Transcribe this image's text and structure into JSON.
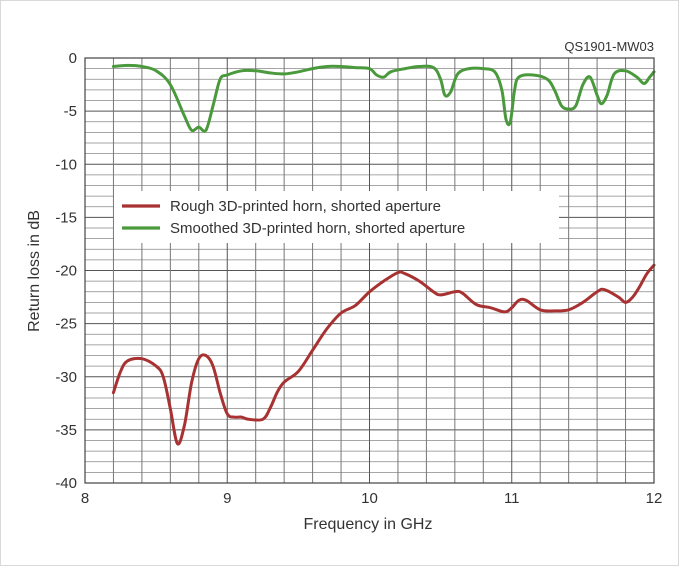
{
  "chart_data": {
    "type": "line",
    "title": "",
    "annotation": "QS1901-MW03",
    "xlabel": "Frequency in GHz",
    "ylabel": "Return loss in dB",
    "xlim": [
      8,
      12
    ],
    "ylim": [
      -40,
      0
    ],
    "x_ticks": [
      "8",
      "9",
      "10",
      "11",
      "12"
    ],
    "y_ticks": [
      "0",
      "-5",
      "-10",
      "-15",
      "-20",
      "-25",
      "-30",
      "-35",
      "-40"
    ],
    "grid": true,
    "legend_position": "upper-left-center",
    "series": [
      {
        "name": "Rough 3D-printed horn, shorted aperture",
        "color": "#a83232",
        "points": [
          [
            8.2,
            -31.5
          ],
          [
            8.25,
            -29.5
          ],
          [
            8.3,
            -28.5
          ],
          [
            8.4,
            -28.3
          ],
          [
            8.5,
            -29.0
          ],
          [
            8.55,
            -30.0
          ],
          [
            8.6,
            -33.0
          ],
          [
            8.65,
            -36.3
          ],
          [
            8.7,
            -34.5
          ],
          [
            8.75,
            -30.5
          ],
          [
            8.8,
            -28.3
          ],
          [
            8.85,
            -28.0
          ],
          [
            8.9,
            -29.0
          ],
          [
            8.95,
            -31.5
          ],
          [
            9.0,
            -33.5
          ],
          [
            9.05,
            -33.8
          ],
          [
            9.1,
            -33.8
          ],
          [
            9.15,
            -34.0
          ],
          [
            9.25,
            -34.0
          ],
          [
            9.3,
            -33.0
          ],
          [
            9.35,
            -31.5
          ],
          [
            9.4,
            -30.5
          ],
          [
            9.5,
            -29.5
          ],
          [
            9.6,
            -27.5
          ],
          [
            9.7,
            -25.5
          ],
          [
            9.8,
            -24.0
          ],
          [
            9.9,
            -23.3
          ],
          [
            10.0,
            -22.0
          ],
          [
            10.1,
            -21.0
          ],
          [
            10.2,
            -20.2
          ],
          [
            10.25,
            -20.3
          ],
          [
            10.35,
            -21.0
          ],
          [
            10.45,
            -22.0
          ],
          [
            10.5,
            -22.3
          ],
          [
            10.6,
            -22.0
          ],
          [
            10.65,
            -22.1
          ],
          [
            10.75,
            -23.2
          ],
          [
            10.85,
            -23.5
          ],
          [
            10.95,
            -23.9
          ],
          [
            11.0,
            -23.5
          ],
          [
            11.05,
            -22.8
          ],
          [
            11.1,
            -22.8
          ],
          [
            11.2,
            -23.7
          ],
          [
            11.3,
            -23.8
          ],
          [
            11.4,
            -23.7
          ],
          [
            11.5,
            -23.0
          ],
          [
            11.6,
            -22.0
          ],
          [
            11.65,
            -21.8
          ],
          [
            11.75,
            -22.5
          ],
          [
            11.8,
            -23.0
          ],
          [
            11.85,
            -22.5
          ],
          [
            11.9,
            -21.5
          ],
          [
            11.95,
            -20.3
          ],
          [
            12.0,
            -19.5
          ]
        ]
      },
      {
        "name": "Smoothed 3D-printed horn, shorted aperture",
        "color": "#4a9a3d",
        "points": [
          [
            8.2,
            -0.8
          ],
          [
            8.3,
            -0.7
          ],
          [
            8.4,
            -0.8
          ],
          [
            8.5,
            -1.2
          ],
          [
            8.6,
            -2.5
          ],
          [
            8.7,
            -5.5
          ],
          [
            8.75,
            -6.8
          ],
          [
            8.8,
            -6.5
          ],
          [
            8.85,
            -6.8
          ],
          [
            8.9,
            -4.5
          ],
          [
            8.95,
            -2.0
          ],
          [
            9.0,
            -1.6
          ],
          [
            9.1,
            -1.2
          ],
          [
            9.2,
            -1.2
          ],
          [
            9.3,
            -1.4
          ],
          [
            9.4,
            -1.5
          ],
          [
            9.5,
            -1.3
          ],
          [
            9.6,
            -1.0
          ],
          [
            9.7,
            -0.8
          ],
          [
            9.8,
            -0.8
          ],
          [
            9.9,
            -0.9
          ],
          [
            10.0,
            -1.0
          ],
          [
            10.05,
            -1.6
          ],
          [
            10.1,
            -1.8
          ],
          [
            10.15,
            -1.3
          ],
          [
            10.25,
            -1.0
          ],
          [
            10.35,
            -0.8
          ],
          [
            10.45,
            -0.9
          ],
          [
            10.5,
            -2.0
          ],
          [
            10.53,
            -3.5
          ],
          [
            10.57,
            -3.2
          ],
          [
            10.62,
            -1.5
          ],
          [
            10.7,
            -1.0
          ],
          [
            10.8,
            -1.0
          ],
          [
            10.88,
            -1.3
          ],
          [
            10.93,
            -3.0
          ],
          [
            10.96,
            -5.8
          ],
          [
            10.99,
            -6.0
          ],
          [
            11.02,
            -3.0
          ],
          [
            11.05,
            -1.8
          ],
          [
            11.15,
            -1.6
          ],
          [
            11.25,
            -2.0
          ],
          [
            11.3,
            -3.0
          ],
          [
            11.35,
            -4.5
          ],
          [
            11.4,
            -4.8
          ],
          [
            11.45,
            -4.5
          ],
          [
            11.5,
            -2.5
          ],
          [
            11.55,
            -1.8
          ],
          [
            11.6,
            -3.5
          ],
          [
            11.63,
            -4.3
          ],
          [
            11.67,
            -3.5
          ],
          [
            11.72,
            -1.5
          ],
          [
            11.8,
            -1.2
          ],
          [
            11.88,
            -1.8
          ],
          [
            11.93,
            -2.4
          ],
          [
            11.97,
            -1.8
          ],
          [
            12.0,
            -1.3
          ]
        ]
      }
    ]
  }
}
